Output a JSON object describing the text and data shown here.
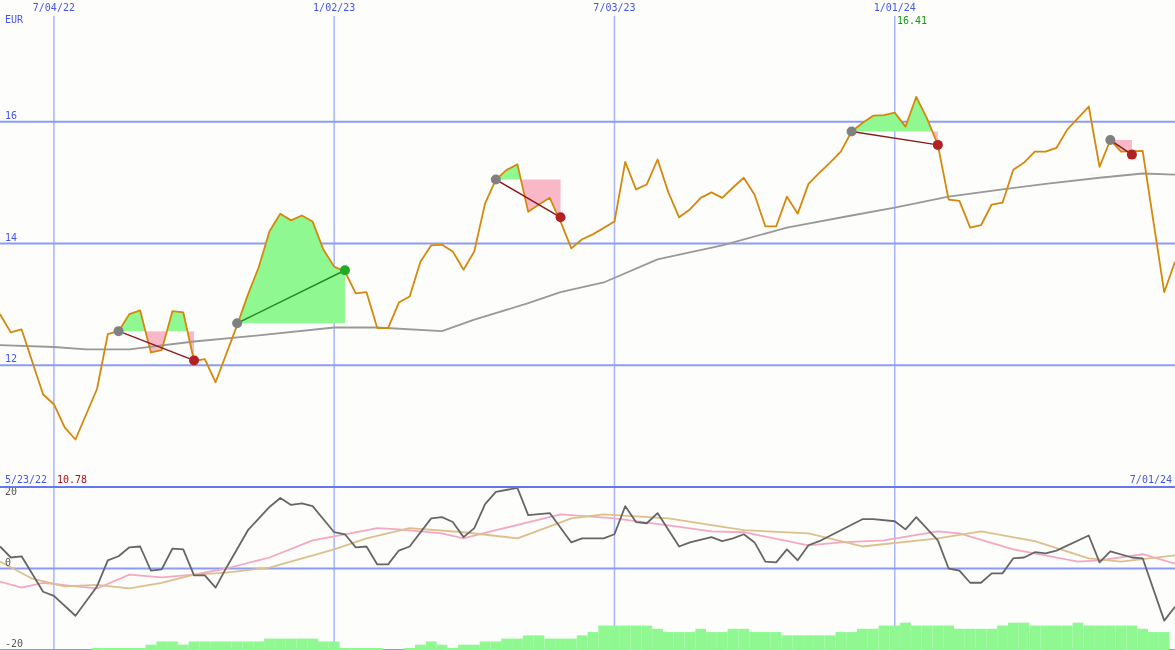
{
  "chart_data": [
    {
      "type": "line",
      "ylabel": "EUR",
      "xlim": [
        "2022-05-30",
        "2024-07-01"
      ],
      "ylim": [
        10,
        18
      ],
      "yticks": [
        12,
        14,
        16
      ],
      "xticks": [
        {
          "value": "2022-07-04",
          "label": "7/04/22"
        },
        {
          "value": "2023-01-02",
          "label": "1/02/23"
        },
        {
          "value": "2023-07-03",
          "label": "7/03/23"
        },
        {
          "value": "2024-01-01",
          "label": "1/01/24"
        }
      ],
      "grid": true,
      "annotations": [
        "5/23/22",
        "10.78",
        "16.41",
        "7/01/24"
      ],
      "series": [
        {
          "color": "#999999",
          "x": [
            "2022-05-30",
            "2022-07-04",
            "2022-07-25",
            "2022-08-22",
            "2022-10-03",
            "2022-11-14",
            "2023-01-02",
            "2023-01-30",
            "2023-03-13",
            "2023-04-03",
            "2023-05-08",
            "2023-05-29",
            "2023-06-26",
            "2023-07-31",
            "2023-09-11",
            "2023-10-23",
            "2023-12-04",
            "2024-01-01",
            "2024-02-05",
            "2024-03-11",
            "2024-04-08",
            "2024-05-13",
            "2024-06-10",
            "2024-07-01"
          ],
          "values": [
            12.33,
            12.3,
            12.26,
            12.26,
            12.39,
            12.49,
            12.62,
            12.62,
            12.56,
            12.75,
            13.02,
            13.2,
            13.36,
            13.74,
            13.97,
            14.26,
            14.46,
            14.59,
            14.77,
            14.89,
            14.98,
            15.08,
            15.15,
            15.13
          ]
        },
        {
          "color": "#d4880c",
          "x": [
            "2022-05-30",
            "2022-06-06",
            "2022-06-13",
            "2022-06-27",
            "2022-07-04",
            "2022-07-11",
            "2022-07-18",
            "2022-08-01",
            "2022-08-08",
            "2022-08-15",
            "2022-08-22",
            "2022-08-29",
            "2022-09-05",
            "2022-09-12",
            "2022-09-19",
            "2022-09-26",
            "2022-10-03",
            "2022-10-10",
            "2022-10-17",
            "2022-10-31",
            "2022-11-07",
            "2022-11-14",
            "2022-11-21",
            "2022-11-28",
            "2022-12-05",
            "2022-12-12",
            "2022-12-19",
            "2022-12-26",
            "2023-01-02",
            "2023-01-09",
            "2023-01-16",
            "2023-01-23",
            "2023-01-30",
            "2023-02-06",
            "2023-02-13",
            "2023-02-20",
            "2023-02-27",
            "2023-03-06",
            "2023-03-13",
            "2023-03-20",
            "2023-03-27",
            "2023-04-03",
            "2023-04-10",
            "2023-04-17",
            "2023-04-24",
            "2023-05-01",
            "2023-05-08",
            "2023-05-15",
            "2023-05-22",
            "2023-05-29",
            "2023-06-05",
            "2023-06-12",
            "2023-06-19",
            "2023-07-03",
            "2023-07-10",
            "2023-07-17",
            "2023-07-24",
            "2023-07-31",
            "2023-08-07",
            "2023-08-14",
            "2023-08-21",
            "2023-08-28",
            "2023-09-04",
            "2023-09-11",
            "2023-09-18",
            "2023-09-25",
            "2023-10-02",
            "2023-10-09",
            "2023-10-16",
            "2023-10-23",
            "2023-10-30",
            "2023-11-06",
            "2023-11-13",
            "2023-11-20",
            "2023-11-27",
            "2023-12-04",
            "2023-12-11",
            "2023-12-18",
            "2023-12-25",
            "2024-01-01",
            "2024-01-08",
            "2024-01-15",
            "2024-01-22",
            "2024-01-29",
            "2024-02-05",
            "2024-02-12",
            "2024-02-19",
            "2024-02-26",
            "2024-03-04",
            "2024-03-11",
            "2024-03-18",
            "2024-03-25",
            "2024-04-01",
            "2024-04-08",
            "2024-04-15",
            "2024-04-22",
            "2024-05-06",
            "2024-05-13",
            "2024-05-20",
            "2024-05-27",
            "2024-06-10",
            "2024-06-24",
            "2024-07-01"
          ],
          "values": [
            12.84,
            12.54,
            12.59,
            11.52,
            11.36,
            10.98,
            10.78,
            11.61,
            12.51,
            12.56,
            12.84,
            12.9,
            12.21,
            12.25,
            12.89,
            12.87,
            12.07,
            12.1,
            11.72,
            12.66,
            13.16,
            13.61,
            14.2,
            14.49,
            14.38,
            14.46,
            14.36,
            13.9,
            13.62,
            13.54,
            13.18,
            13.2,
            12.61,
            12.61,
            13.03,
            13.13,
            13.7,
            13.97,
            13.98,
            13.87,
            13.57,
            13.87,
            14.66,
            15.05,
            15.21,
            15.3,
            14.52,
            14.64,
            14.75,
            14.36,
            13.92,
            14.07,
            14.15,
            14.36,
            15.34,
            14.89,
            14.97,
            15.38,
            14.84,
            14.43,
            14.56,
            14.75,
            14.84,
            14.75,
            14.92,
            15.08,
            14.8,
            14.28,
            14.28,
            14.77,
            14.49,
            14.98,
            15.16,
            15.33,
            15.51,
            15.84,
            15.98,
            16.1,
            16.11,
            16.15,
            15.92,
            16.41,
            16.05,
            15.62,
            14.72,
            14.7,
            14.26,
            14.3,
            14.64,
            14.67,
            15.21,
            15.33,
            15.51,
            15.51,
            15.57,
            15.87,
            16.25,
            15.26,
            15.7,
            15.51,
            15.52,
            13.2,
            13.7
          ]
        },
        {
          "color": "#8b1a1a",
          "marker": "circle",
          "colors": [
            "#808080",
            "#b22222"
          ],
          "x": [
            "2022-08-15",
            "2022-10-03"
          ],
          "values": [
            12.56,
            12.08
          ]
        },
        {
          "color": "#228b22",
          "marker": "circle",
          "colors": [
            "#808080",
            "#22aa22"
          ],
          "x": [
            "2022-10-31",
            "2023-01-09"
          ],
          "values": [
            12.69,
            13.56
          ]
        },
        {
          "color": "#8b1a1a",
          "marker": "circle",
          "colors": [
            "#808080",
            "#b22222"
          ],
          "x": [
            "2023-04-17",
            "2023-05-29"
          ],
          "values": [
            15.05,
            14.43
          ]
        },
        {
          "color": "#8b1a1a",
          "marker": "circle",
          "colors": [
            "#808080",
            "#b22222"
          ],
          "x": [
            "2023-12-04",
            "2024-01-29"
          ],
          "values": [
            15.84,
            15.62
          ]
        },
        {
          "color": "#8b1a1a",
          "marker": "circle",
          "colors": [
            "#808080",
            "#b22222"
          ],
          "x": [
            "2024-05-20",
            "2024-06-03"
          ],
          "values": [
            15.7,
            15.46
          ]
        }
      ]
    },
    {
      "type": "line",
      "xlim": [
        "2022-05-30",
        "2024-07-01"
      ],
      "ylim": [
        -20,
        20
      ],
      "yticks": [
        -20,
        0,
        20
      ],
      "tick_labels": "y",
      "xticks": [
        {
          "value": "2022-07-04",
          "label": null
        },
        {
          "value": "2023-01-02",
          "label": null
        },
        {
          "value": "2023-07-03",
          "label": null
        },
        {
          "value": "2024-01-01",
          "label": null
        }
      ],
      "grid": true,
      "ref_lines": [
        {
          "axis": "y",
          "value": 0
        }
      ],
      "series": [
        {
          "type": "bar",
          "color": "#90f890",
          "x": [
            "2022-08-01",
            "2022-08-08",
            "2022-08-15",
            "2022-08-22",
            "2022-08-29",
            "2022-09-05",
            "2022-09-12",
            "2022-09-19",
            "2022-09-26",
            "2022-10-03",
            "2022-10-10",
            "2022-10-17",
            "2022-10-24",
            "2022-10-31",
            "2022-11-07",
            "2022-11-14",
            "2022-11-21",
            "2022-11-28",
            "2022-12-05",
            "2022-12-12",
            "2022-12-19",
            "2022-12-26",
            "2023-01-02",
            "2023-01-09",
            "2023-01-16",
            "2023-01-23",
            "2023-01-30",
            "2023-02-06",
            "2023-02-13",
            "2023-02-20",
            "2023-02-27",
            "2023-03-06",
            "2023-03-13",
            "2023-03-20",
            "2023-03-27",
            "2023-04-03",
            "2023-04-10",
            "2023-04-17",
            "2023-04-24",
            "2023-05-01",
            "2023-05-08",
            "2023-05-15",
            "2023-05-22",
            "2023-05-29",
            "2023-06-05",
            "2023-06-12",
            "2023-06-19",
            "2023-06-26",
            "2023-07-03",
            "2023-07-10",
            "2023-07-17",
            "2023-07-24",
            "2023-07-31",
            "2023-08-07",
            "2023-08-14",
            "2023-08-21",
            "2023-08-28",
            "2023-09-04",
            "2023-09-11",
            "2023-09-18",
            "2023-09-25",
            "2023-10-02",
            "2023-10-09",
            "2023-10-16",
            "2023-10-23",
            "2023-10-30",
            "2023-11-06",
            "2023-11-13",
            "2023-11-20",
            "2023-11-27",
            "2023-12-04",
            "2023-12-11",
            "2023-12-18",
            "2023-12-25",
            "2024-01-01",
            "2024-01-08",
            "2024-01-15",
            "2024-01-22",
            "2024-01-29",
            "2024-02-05",
            "2024-02-12",
            "2024-02-19",
            "2024-02-26",
            "2024-03-04",
            "2024-03-11",
            "2024-03-18",
            "2024-03-25",
            "2024-04-01",
            "2024-04-08",
            "2024-04-15",
            "2024-04-22",
            "2024-04-29",
            "2024-05-06",
            "2024-05-13",
            "2024-05-20",
            "2024-05-27",
            "2024-06-03",
            "2024-06-10",
            "2024-06-17",
            "2024-06-24"
          ],
          "values": [
            0.5,
            0.5,
            0.5,
            0.5,
            0.5,
            1.3,
            2.1,
            2.1,
            1.3,
            2.1,
            2.1,
            2.1,
            2.1,
            2.1,
            2.1,
            2.1,
            2.8,
            2.8,
            2.8,
            2.8,
            2.8,
            2.1,
            2.1,
            0.5,
            0.5,
            0.5,
            0.5,
            null,
            null,
            0.5,
            1.3,
            2.1,
            1.3,
            0.5,
            1.3,
            1.3,
            2.1,
            2.1,
            2.8,
            2.8,
            3.6,
            3.6,
            2.8,
            2.8,
            2.8,
            3.6,
            4.4,
            6.0,
            6.0,
            6.0,
            6.0,
            6.0,
            5.2,
            4.4,
            4.4,
            4.4,
            5.2,
            4.4,
            4.4,
            5.2,
            5.2,
            4.4,
            4.4,
            4.4,
            3.6,
            3.6,
            3.6,
            3.6,
            3.6,
            4.4,
            4.4,
            5.2,
            5.2,
            6.0,
            6.0,
            6.7,
            6.0,
            6.0,
            6.0,
            6.0,
            5.2,
            5.2,
            5.2,
            5.2,
            6.0,
            6.7,
            6.7,
            6.0,
            6.0,
            6.0,
            6.0,
            6.7,
            6.0,
            6.0,
            6.0,
            6.0,
            6.0,
            5.2,
            4.4,
            4.4
          ],
          "base": [
            -20,
            -20,
            -20,
            -20,
            -20,
            -20,
            -20,
            -20,
            -20,
            -20,
            -20,
            -20,
            -20,
            -20,
            -20,
            -20,
            -20,
            -20,
            -20,
            -20,
            -20,
            -20,
            -20,
            -20,
            -20,
            -20,
            -20,
            null,
            null,
            -20,
            -20,
            -20,
            -20,
            -20,
            -20,
            -20,
            -20,
            -20,
            -20,
            -20,
            -20,
            -20,
            -20,
            -20,
            -20,
            -20,
            -20,
            -20,
            -20,
            -20,
            -20,
            -20,
            -20,
            -20,
            -20,
            -20,
            -20,
            -20,
            -20,
            -20,
            -20,
            -20,
            -20,
            -20,
            -20,
            -20,
            -20,
            -20,
            -20,
            -20,
            -20,
            -20,
            -20,
            -20,
            -20,
            -20,
            -20,
            -20,
            -20,
            -20,
            -20,
            -20,
            -20,
            -20,
            -20,
            -20,
            -20,
            -20,
            -20,
            -20,
            -20,
            -20,
            -20,
            -20,
            -20,
            -20,
            -20,
            -20,
            -20,
            -20
          ]
        },
        {
          "color": "#f4a8c4",
          "x": [
            "2022-05-30",
            "2022-06-13",
            "2022-06-27",
            "2022-07-18",
            "2022-08-01",
            "2022-08-22",
            "2022-09-12",
            "2022-10-03",
            "2022-10-24",
            "2022-11-21",
            "2022-12-19",
            "2023-01-09",
            "2023-01-30",
            "2023-02-13",
            "2023-03-13",
            "2023-03-27",
            "2023-04-17",
            "2023-05-29",
            "2023-06-05",
            "2023-07-03",
            "2023-08-07",
            "2023-09-04",
            "2023-09-25",
            "2023-11-06",
            "2023-11-27",
            "2023-12-25",
            "2024-01-29",
            "2024-02-12",
            "2024-03-18",
            "2024-04-29",
            "2024-05-13",
            "2024-06-10",
            "2024-07-01"
          ],
          "values": [
            -3.2,
            -4.7,
            -3.5,
            -4.4,
            -4.9,
            -1.5,
            -2.2,
            -1.5,
            0,
            2.7,
            6.9,
            8.4,
            9.9,
            9.6,
            8.6,
            7.4,
            9.4,
            13.3,
            13.1,
            12.3,
            10.6,
            9.1,
            8.9,
            5.7,
            6.4,
            6.9,
            9.1,
            8.6,
            4.7,
            1.7,
            2.0,
            3.5,
            1.2
          ]
        },
        {
          "color": "#dcc08c",
          "x": [
            "2022-05-30",
            "2022-06-20",
            "2022-07-11",
            "2022-08-01",
            "2022-08-22",
            "2022-09-12",
            "2022-10-03",
            "2022-10-24",
            "2022-11-21",
            "2023-01-02",
            "2023-01-23",
            "2023-02-20",
            "2023-03-27",
            "2023-05-01",
            "2023-06-05",
            "2023-06-26",
            "2023-08-07",
            "2023-09-25",
            "2023-11-06",
            "2023-12-11",
            "2024-01-29",
            "2024-02-26",
            "2024-04-01",
            "2024-05-06",
            "2024-05-27",
            "2024-07-01"
          ],
          "values": [
            1.7,
            -2.5,
            -4.4,
            -4.0,
            -4.9,
            -3.5,
            -1.5,
            -1.0,
            0.2,
            4.7,
            7.4,
            9.9,
            8.9,
            7.4,
            12.3,
            13.3,
            12.3,
            9.4,
            8.6,
            5.4,
            7.4,
            9.1,
            6.7,
            2.5,
            1.7,
            3.2
          ]
        },
        {
          "color": "#666666",
          "x": [
            "2022-05-30",
            "2022-06-06",
            "2022-06-13",
            "2022-06-27",
            "2022-07-04",
            "2022-07-18",
            "2022-08-01",
            "2022-08-08",
            "2022-08-15",
            "2022-08-22",
            "2022-08-29",
            "2022-09-05",
            "2022-09-12",
            "2022-09-19",
            "2022-09-26",
            "2022-10-03",
            "2022-10-10",
            "2022-10-17",
            "2022-10-24",
            "2022-11-07",
            "2022-11-21",
            "2022-11-28",
            "2022-12-05",
            "2022-12-12",
            "2022-12-19",
            "2023-01-02",
            "2023-01-09",
            "2023-01-16",
            "2023-01-23",
            "2023-01-30",
            "2023-02-06",
            "2023-02-13",
            "2023-02-20",
            "2023-03-06",
            "2023-03-13",
            "2023-03-20",
            "2023-03-27",
            "2023-04-03",
            "2023-04-10",
            "2023-04-17",
            "2023-05-01",
            "2023-05-08",
            "2023-05-22",
            "2023-06-05",
            "2023-06-12",
            "2023-06-26",
            "2023-07-03",
            "2023-07-10",
            "2023-07-17",
            "2023-07-24",
            "2023-07-31",
            "2023-08-14",
            "2023-08-21",
            "2023-09-04",
            "2023-09-11",
            "2023-09-18",
            "2023-09-25",
            "2023-10-02",
            "2023-10-09",
            "2023-10-16",
            "2023-10-23",
            "2023-10-30",
            "2023-11-06",
            "2023-11-13",
            "2023-11-27",
            "2023-12-11",
            "2023-12-18",
            "2024-01-01",
            "2024-01-08",
            "2024-01-15",
            "2024-01-29",
            "2024-02-05",
            "2024-02-12",
            "2024-02-19",
            "2024-02-26",
            "2024-03-04",
            "2024-03-11",
            "2024-03-18",
            "2024-03-25",
            "2024-04-01",
            "2024-04-08",
            "2024-04-15",
            "2024-05-06",
            "2024-05-13",
            "2024-05-20",
            "2024-06-03",
            "2024-06-10",
            "2024-06-24",
            "2024-07-01"
          ],
          "values": [
            5.4,
            2.7,
            3.0,
            -5.7,
            -6.7,
            -11.6,
            -4.4,
            2.0,
            3.0,
            5.2,
            5.4,
            -0.5,
            -0.2,
            4.9,
            4.7,
            -1.7,
            -1.7,
            -4.7,
            0.2,
            9.4,
            15.1,
            17.3,
            15.6,
            16.0,
            15.3,
            8.9,
            8.4,
            5.2,
            5.4,
            1.0,
            1.0,
            4.4,
            5.4,
            12.3,
            12.6,
            11.4,
            7.7,
            9.9,
            15.8,
            18.8,
            19.8,
            13.1,
            13.6,
            6.4,
            7.4,
            7.4,
            8.4,
            15.3,
            11.4,
            11.1,
            13.6,
            5.4,
            6.4,
            7.7,
            6.7,
            7.4,
            8.4,
            6.4,
            1.7,
            1.5,
            4.7,
            2.0,
            5.7,
            6.7,
            9.4,
            12.1,
            12.1,
            11.6,
            9.6,
            12.6,
            6.9,
            0,
            -0.5,
            -3.5,
            -3.5,
            -1.2,
            -1.2,
            2.5,
            2.7,
            4.0,
            3.7,
            4.4,
            8.1,
            1.5,
            4.2,
            2.7,
            2.5,
            -12.8,
            -9.4
          ]
        }
      ]
    }
  ]
}
